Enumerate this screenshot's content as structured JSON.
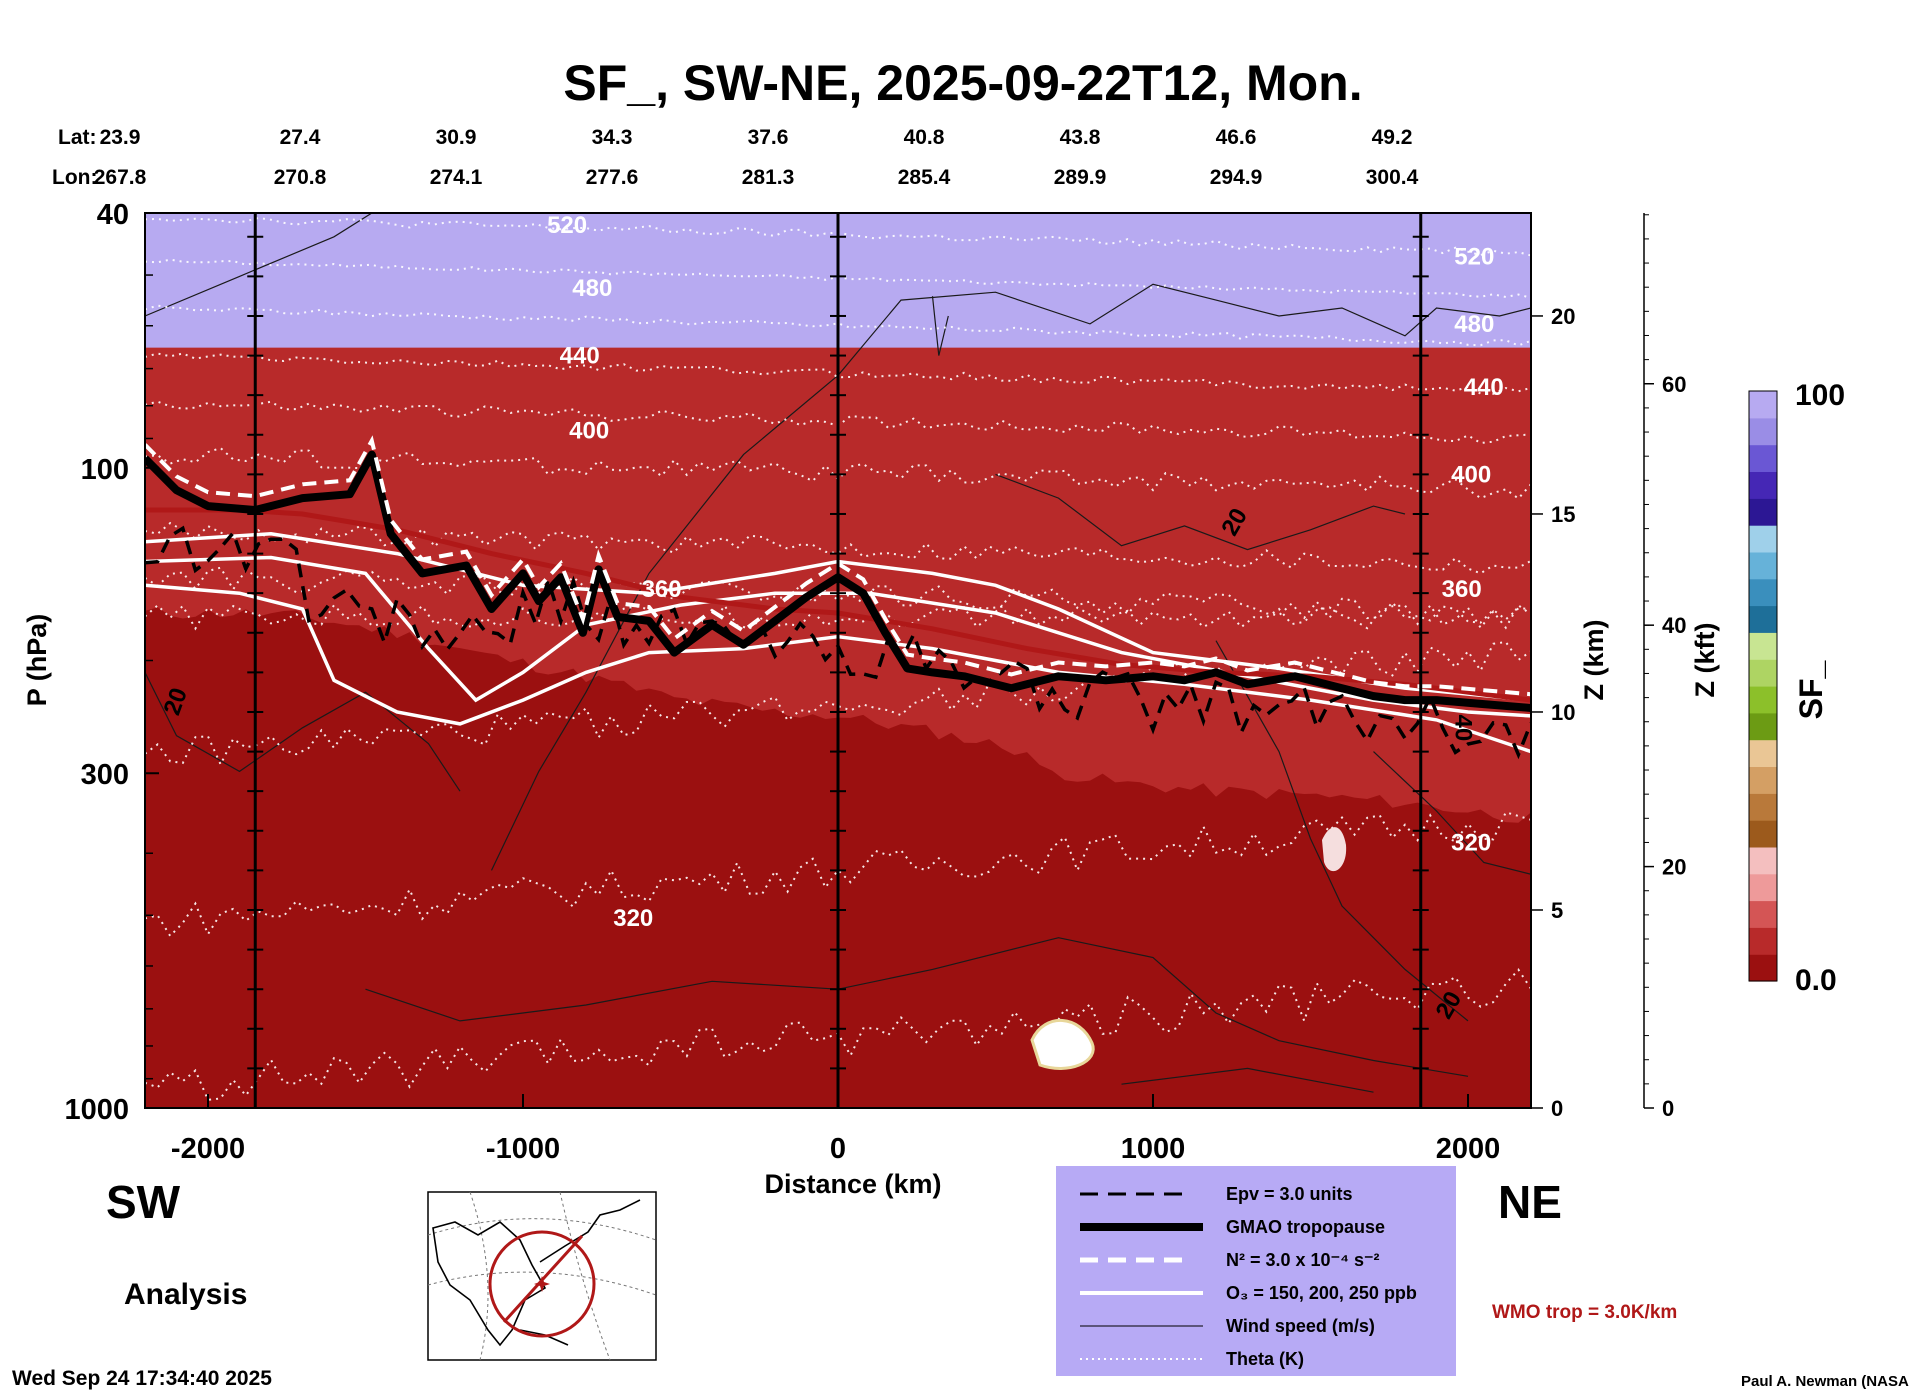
{
  "title": "SF_, SW-NE, 2025-09-22T12, Mon.",
  "header": {
    "lat_label": "Lat:",
    "lon_label": "Lon:",
    "lat": [
      "23.9",
      "27.4",
      "30.9",
      "34.3",
      "37.6",
      "40.8",
      "43.8",
      "46.6",
      "49.2"
    ],
    "lon": [
      "267.8",
      "270.8",
      "274.1",
      "277.6",
      "281.3",
      "285.4",
      "289.9",
      "294.9",
      "300.4"
    ]
  },
  "chart_data": {
    "type": "heatmap",
    "title": "SF_, SW-NE, 2025-09-22T12, Mon.",
    "xlabel": "Distance (km)",
    "ylabel": "P (hPa)",
    "xlim": [
      -2200,
      2200
    ],
    "ylim": [
      1000,
      40
    ],
    "y_scale": "log",
    "x_ticks": [
      "-2000",
      "-1000",
      "0",
      "1000",
      "2000"
    ],
    "y_ticks": [
      "40",
      "100",
      "300",
      "1000"
    ],
    "z_km_label": "Z (km)",
    "z_km_ticks": [
      "0",
      "5",
      "10",
      "15",
      "20"
    ],
    "z_kft_label": "Z (kft)",
    "z_kft_ticks": [
      "0",
      "20",
      "40",
      "60"
    ],
    "colorbar": {
      "label": "SF_",
      "min": "0.0",
      "max": "100",
      "colors": [
        "#9b1010",
        "#b82a2a",
        "#d45555",
        "#ee9a9a",
        "#f4bfbf",
        "#9c5a1c",
        "#b9793a",
        "#d49f64",
        "#eac695",
        "#6c9b14",
        "#8cc02a",
        "#aed463",
        "#c8e592",
        "#1e6f99",
        "#3a8fbd",
        "#66b2d9",
        "#9fd0ea",
        "#2c1794",
        "#4527b5",
        "#6a57d4",
        "#9a8de6",
        "#b7aaf1"
      ]
    },
    "theta_labels": [
      "520",
      "480",
      "440",
      "400",
      "360",
      "320"
    ],
    "wind_labels": [
      "20",
      "40"
    ],
    "tropopause_km": [
      [
        -2200,
        16.4
      ],
      [
        -2100,
        15.6
      ],
      [
        -2000,
        15.2
      ],
      [
        -1850,
        15.1
      ],
      [
        -1700,
        15.4
      ],
      [
        -1550,
        15.5
      ],
      [
        -1480,
        16.5
      ],
      [
        -1420,
        14.5
      ],
      [
        -1320,
        13.5
      ],
      [
        -1180,
        13.7
      ],
      [
        -1100,
        12.6
      ],
      [
        -1000,
        13.5
      ],
      [
        -950,
        12.8
      ],
      [
        -880,
        13.4
      ],
      [
        -810,
        12.0
      ],
      [
        -760,
        13.6
      ],
      [
        -700,
        12.4
      ],
      [
        -600,
        12.3
      ],
      [
        -520,
        11.5
      ],
      [
        -400,
        12.2
      ],
      [
        -300,
        11.7
      ],
      [
        -200,
        12.3
      ],
      [
        -100,
        12.9
      ],
      [
        0,
        13.4
      ],
      [
        80,
        13.0
      ],
      [
        150,
        12.0
      ],
      [
        220,
        11.1
      ],
      [
        300,
        11.0
      ],
      [
        400,
        10.9
      ],
      [
        550,
        10.6
      ],
      [
        700,
        10.9
      ],
      [
        850,
        10.8
      ],
      [
        1000,
        10.9
      ],
      [
        1100,
        10.8
      ],
      [
        1200,
        11.0
      ],
      [
        1300,
        10.7
      ],
      [
        1450,
        10.9
      ],
      [
        1600,
        10.6
      ],
      [
        1700,
        10.4
      ],
      [
        1800,
        10.3
      ],
      [
        1900,
        10.3
      ],
      [
        2050,
        10.2
      ],
      [
        2200,
        10.1
      ]
    ],
    "wmo_trop_km": [
      [
        -2200,
        15.1
      ],
      [
        -1900,
        15.1
      ],
      [
        -1700,
        15.0
      ],
      [
        -1400,
        14.6
      ],
      [
        -1100,
        14.0
      ],
      [
        -800,
        13.5
      ],
      [
        -500,
        12.9
      ],
      [
        -200,
        12.6
      ],
      [
        0,
        12.5
      ],
      [
        300,
        12.1
      ],
      [
        600,
        11.6
      ],
      [
        900,
        11.2
      ],
      [
        1200,
        11.0
      ],
      [
        1500,
        10.9
      ],
      [
        1800,
        10.7
      ],
      [
        2000,
        10.5
      ],
      [
        2200,
        10.3
      ]
    ],
    "o3_contours_km": [
      [
        [
          -2200,
          14.3
        ],
        [
          -1800,
          14.5
        ],
        [
          -1400,
          14.0
        ],
        [
          -1000,
          13.2
        ],
        [
          -600,
          13.0
        ],
        [
          -200,
          13.5
        ],
        [
          0,
          13.8
        ],
        [
          300,
          13.5
        ],
        [
          500,
          13.2
        ],
        [
          700,
          12.6
        ],
        [
          1000,
          11.5
        ],
        [
          1400,
          11.1
        ],
        [
          1800,
          10.6
        ],
        [
          2200,
          10.3
        ]
      ],
      [
        [
          -2200,
          13.8
        ],
        [
          -1800,
          13.9
        ],
        [
          -1500,
          13.5
        ],
        [
          -1300,
          11.6
        ],
        [
          -1150,
          10.3
        ],
        [
          -1000,
          11.0
        ],
        [
          -800,
          12.2
        ],
        [
          -500,
          12.7
        ],
        [
          -200,
          13.0
        ],
        [
          100,
          13.0
        ],
        [
          500,
          12.5
        ],
        [
          900,
          11.5
        ],
        [
          1300,
          10.9
        ],
        [
          1700,
          10.3
        ],
        [
          2000,
          10.0
        ],
        [
          2200,
          9.9
        ]
      ],
      [
        [
          -2200,
          13.2
        ],
        [
          -1900,
          13.0
        ],
        [
          -1700,
          12.6
        ],
        [
          -1600,
          10.8
        ],
        [
          -1400,
          10.0
        ],
        [
          -1200,
          9.7
        ],
        [
          -1000,
          10.3
        ],
        [
          -800,
          11.0
        ],
        [
          -600,
          11.5
        ],
        [
          -300,
          11.6
        ],
        [
          0,
          11.9
        ],
        [
          300,
          11.6
        ],
        [
          700,
          11.0
        ],
        [
          1100,
          10.7
        ],
        [
          1500,
          10.3
        ],
        [
          1900,
          9.8
        ],
        [
          2200,
          9.0
        ]
      ]
    ],
    "legend": [
      "Epv = 3.0 units",
      "GMAO tropopause",
      "N² = 3.0 x 10⁻⁴ s⁻²",
      "O₃ = 150, 200, 250 ppb",
      "Wind speed (m/s)",
      "Theta (K)"
    ],
    "wmo_note": "WMO trop = 3.0K/km"
  },
  "labels": {
    "sw": "SW",
    "ne": "NE",
    "analysis": "Analysis"
  },
  "footer": {
    "timestamp": "Wed Sep 24 17:34:40 2025",
    "credit": "Paul A. Newman (NASA"
  },
  "colors": {
    "wmo": "#b01818",
    "legend_bg": "#b7aaf5",
    "bg_red": "#9b1010"
  }
}
